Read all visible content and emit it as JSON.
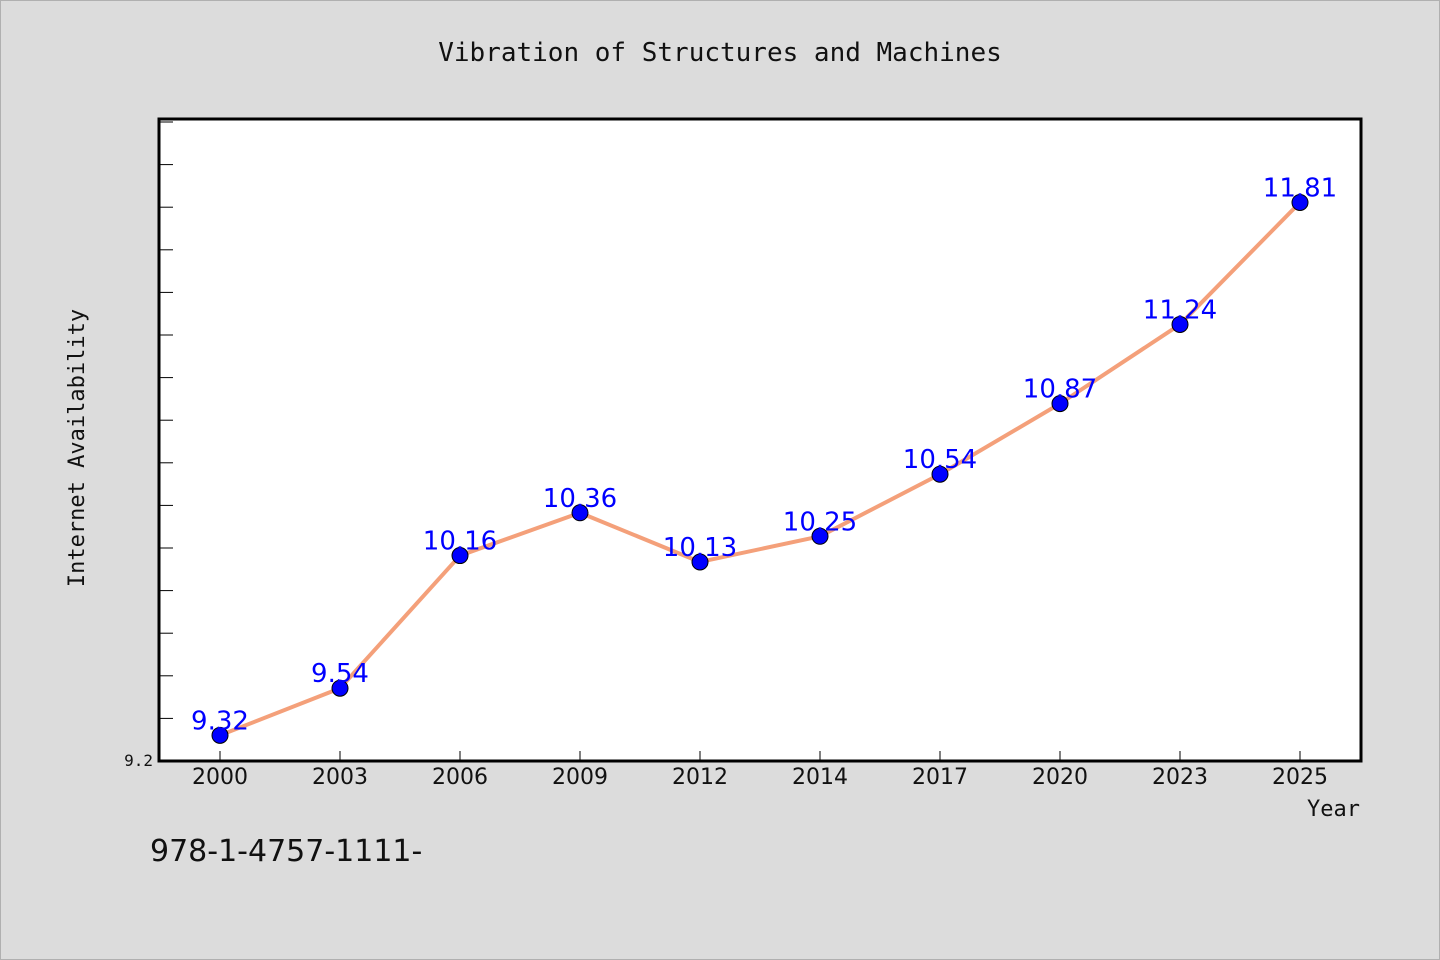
{
  "chart_data": {
    "type": "line",
    "title": "Vibration of Structures and Machines",
    "xlabel": "Year",
    "ylabel": "Internet Availability",
    "categories": [
      "2000",
      "2003",
      "2006",
      "2009",
      "2012",
      "2014",
      "2017",
      "2020",
      "2023",
      "2025"
    ],
    "series": [
      {
        "values": [
          9.32,
          9.54,
          10.16,
          10.36,
          10.13,
          10.25,
          10.54,
          10.87,
          11.24,
          11.81
        ]
      }
    ],
    "ylim": [
      9.2,
      12.2
    ],
    "y_tick_labels": [
      "9.2"
    ],
    "grid": false,
    "line_color": "#f4a07a",
    "marker_color": "#0000ff",
    "label_color": "#0000ff"
  },
  "footer": {
    "code": "978-1-4757-1111-"
  }
}
